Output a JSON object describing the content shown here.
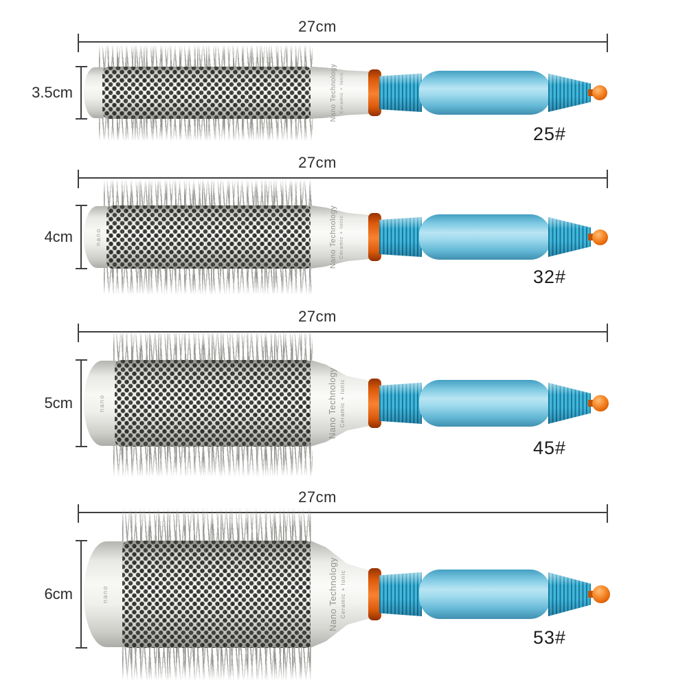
{
  "image_type": "product-comparison-photo",
  "product": {
    "neck_line1": "Nano Technology",
    "neck_line2": "Ceramic + Ionic"
  },
  "colors": {
    "dimension_lines": "#3e3e3e",
    "label_text": "#2d2d2d",
    "handle_blue": "#43b7da",
    "handle_rib_dark_blue": "#157a9f",
    "grip_light_blue": "#9fdaed",
    "collar_orange": "#dd5a0b",
    "tip_ball_orange": "#e4680c",
    "bristle_gray": "#a9a9a5",
    "ceramic_white": "#f5f5f2",
    "barrel_hole_dark": "#30302c"
  },
  "rows": [
    {
      "length_label": "27cm",
      "diameter_label": "3.5cm",
      "model_label": "25#",
      "cap_text": ""
    },
    {
      "length_label": "27cm",
      "diameter_label": "4cm",
      "model_label": "32#",
      "cap_text": "nano"
    },
    {
      "length_label": "27cm",
      "diameter_label": "5cm",
      "model_label": "45#",
      "cap_text": "nano"
    },
    {
      "length_label": "27cm",
      "diameter_label": "6cm",
      "model_label": "53#",
      "cap_text": "nano"
    }
  ]
}
